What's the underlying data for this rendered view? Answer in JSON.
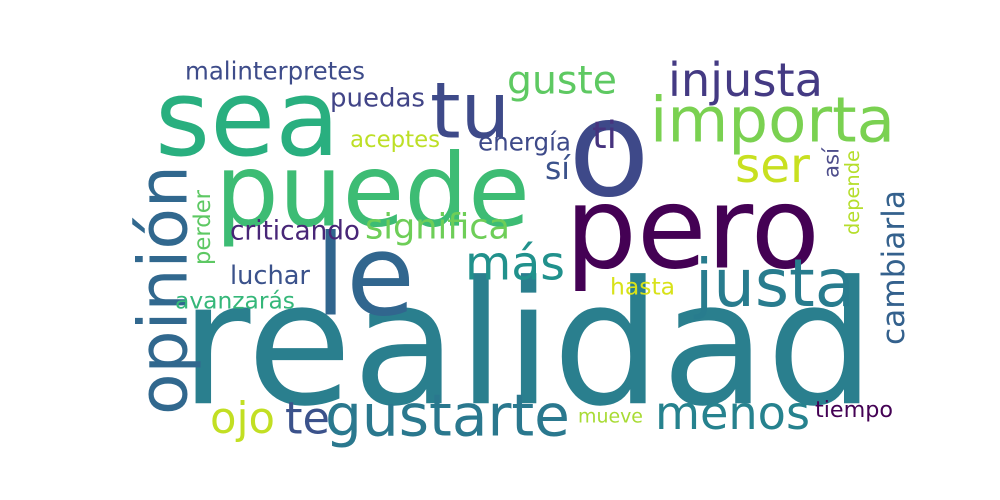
{
  "words": [
    {
      "text": "realidad",
      "color": "#2a7f8e"
    },
    {
      "text": "pero",
      "color": "#440154"
    },
    {
      "text": "puede",
      "color": "#3dbc74"
    },
    {
      "text": "sea",
      "color": "#29af7f"
    },
    {
      "text": "o",
      "color": "#3e4989"
    },
    {
      "text": "importa",
      "color": "#7ad151"
    },
    {
      "text": "le",
      "color": "#31668e"
    },
    {
      "text": "opinión",
      "color": "#31688e"
    },
    {
      "text": "tu",
      "color": "#3e4a89"
    },
    {
      "text": "justa",
      "color": "#287c8e"
    },
    {
      "text": "gustarte",
      "color": "#2a788e"
    },
    {
      "text": "menos",
      "color": "#26828e"
    },
    {
      "text": "más",
      "color": "#21918c"
    },
    {
      "text": "ser",
      "color": "#c8e020"
    },
    {
      "text": "injusta",
      "color": "#443a83"
    },
    {
      "text": "guste",
      "color": "#5ec962"
    },
    {
      "text": "cambiarla",
      "color": "#34618d"
    },
    {
      "text": "significa",
      "color": "#6ece58"
    },
    {
      "text": "ojo",
      "color": "#c2df23"
    },
    {
      "text": "te",
      "color": "#3b528b"
    },
    {
      "text": "puedas",
      "color": "#414487"
    },
    {
      "text": "luchar",
      "color": "#3b528b"
    },
    {
      "text": "malinterpretes",
      "color": "#3e4c8a"
    },
    {
      "text": "criticando",
      "color": "#482677"
    },
    {
      "text": "aceptes",
      "color": "#bddf26"
    },
    {
      "text": "energía",
      "color": "#3e4a89"
    },
    {
      "text": "ti",
      "color": "#46337e"
    },
    {
      "text": "sí",
      "color": "#3b528b"
    },
    {
      "text": "así",
      "color": "#4d4d8b"
    },
    {
      "text": "depende",
      "color": "#b5de2b"
    },
    {
      "text": "perder",
      "color": "#5dc863"
    },
    {
      "text": "avanzarás",
      "color": "#35b779"
    },
    {
      "text": "hasta",
      "color": "#d8e219"
    },
    {
      "text": "mueve",
      "color": "#a8db34"
    },
    {
      "text": "tiempo",
      "color": "#440154"
    }
  ]
}
